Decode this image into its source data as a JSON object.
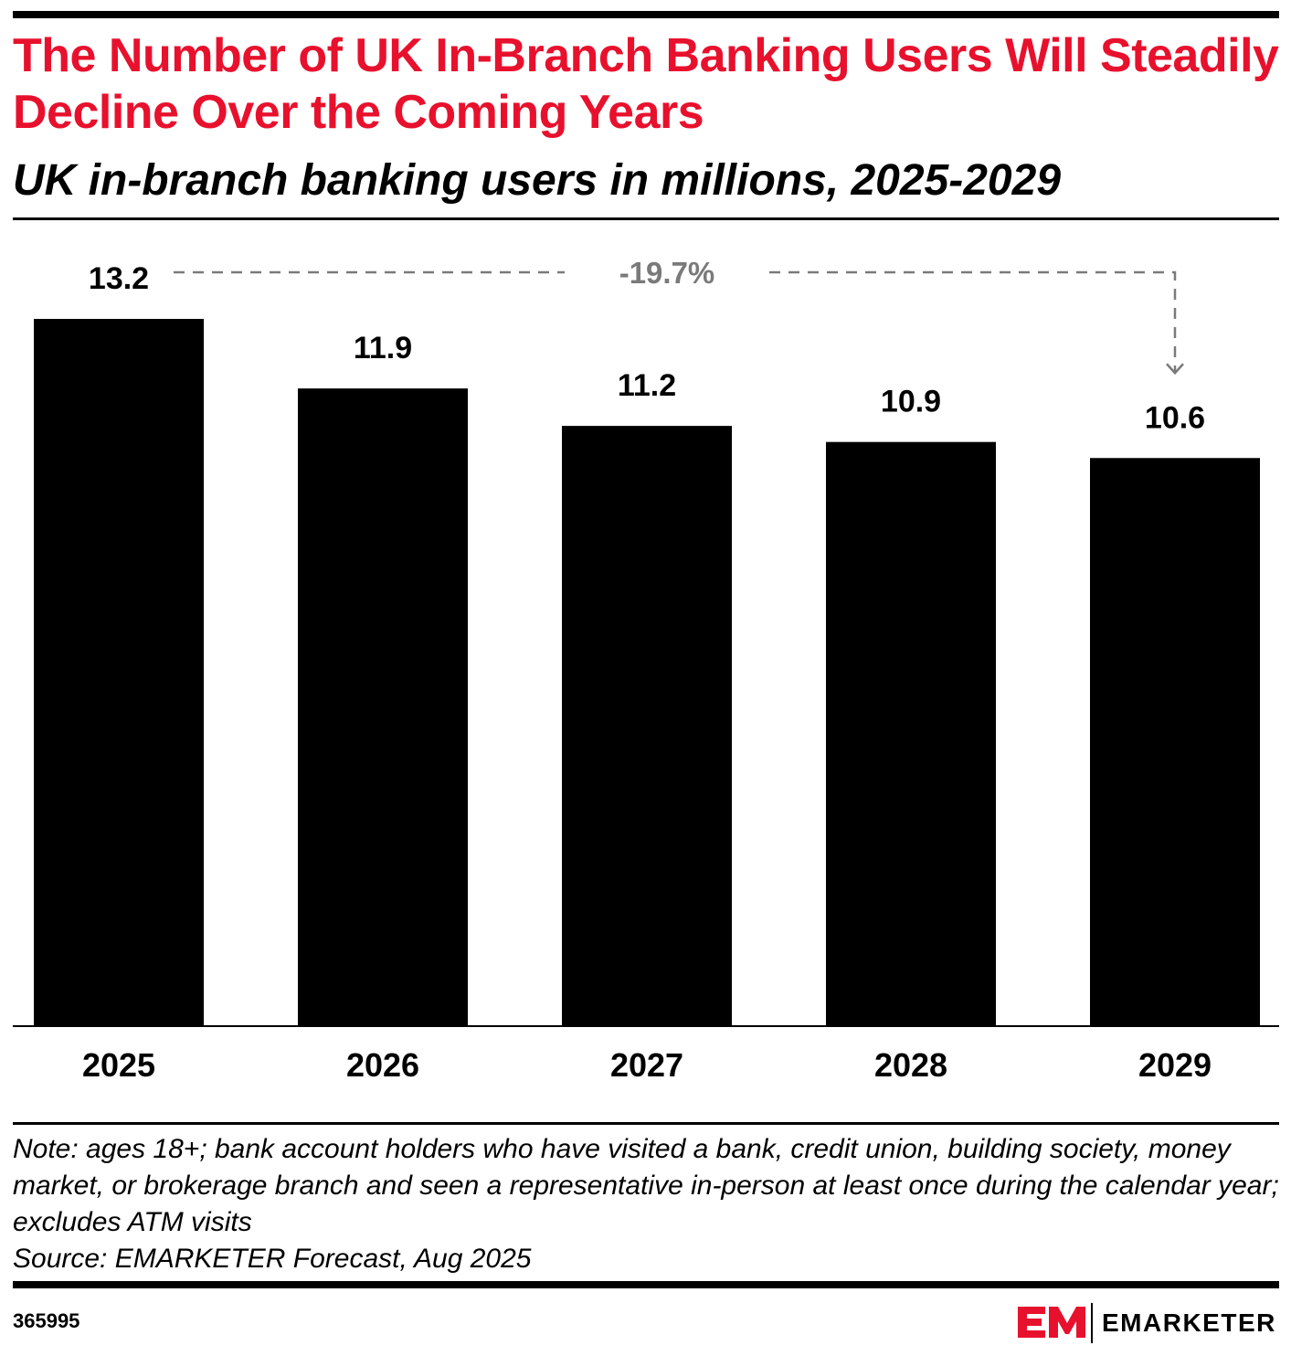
{
  "title": "The Number of UK In-Branch Banking Users Will Steadily Decline Over the Coming Years",
  "subtitle": "UK in-branch banking users in millions, 2025-2029",
  "chart_data": {
    "type": "bar",
    "categories": [
      "2025",
      "2026",
      "2027",
      "2028",
      "2029"
    ],
    "values": [
      13.2,
      11.9,
      11.2,
      10.9,
      10.6
    ],
    "value_labels": [
      "13.2",
      "11.9",
      "11.2",
      "10.9",
      "10.6"
    ],
    "ylim": [
      0,
      13.2
    ],
    "grid": false,
    "bar_color": "#000000",
    "annotation": {
      "text": "-19.7%",
      "from": "2025",
      "to": "2029",
      "color": "#7a7a7a"
    }
  },
  "note": {
    "lines": [
      "Note: ages 18+; bank account holders who have visited a bank, credit union, building society, money market, or brokerage branch and seen a representative in-person at least once during the calendar year; excludes ATM visits",
      "Source: EMARKETER Forecast, Aug 2025"
    ]
  },
  "footer": {
    "chart_id": "365995",
    "brand": "EMARKETER",
    "brand_color": "#e8112d"
  }
}
